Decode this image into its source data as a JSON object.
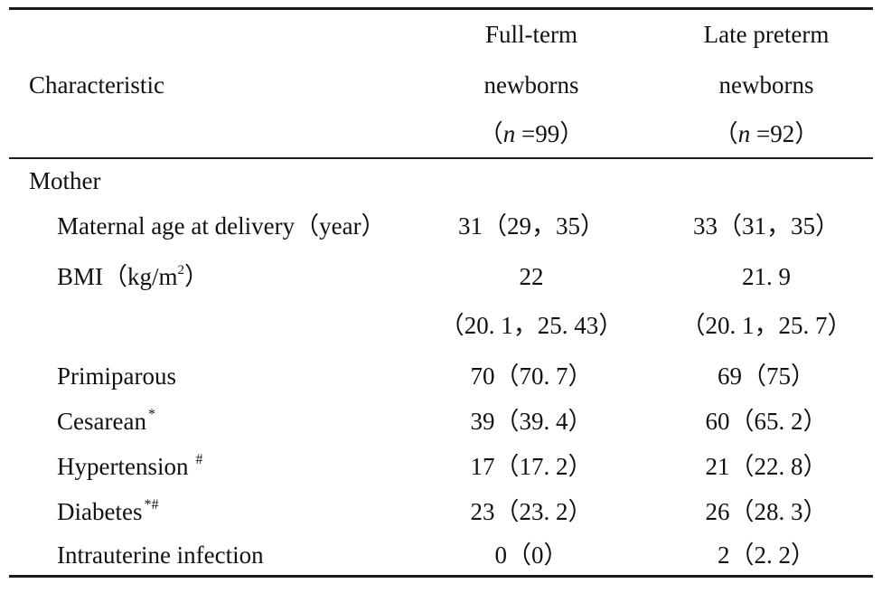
{
  "header": {
    "characteristic": "Characteristic",
    "col_full_term": [
      "Full-term",
      "newborns",
      "（n =99）"
    ],
    "col_late_preterm": [
      "Late preterm",
      "newborns",
      "（n =92）"
    ]
  },
  "section_label": "Mother",
  "rows": [
    {
      "label": "Maternal age at delivery（year）",
      "full_term": "31（29，35）",
      "late_preterm": "33（31，35）"
    },
    {
      "label": "BMI（kg/m",
      "label_sup": "2",
      "label_tail": "）",
      "full_term": "22",
      "late_preterm": "21. 9"
    },
    {
      "label": "",
      "full_term": "（20. 1，25. 43）",
      "late_preterm": "（20. 1，25. 7）"
    },
    {
      "label": "Primiparous",
      "full_term": "70（70. 7）",
      "late_preterm": "69（75）"
    },
    {
      "label": "Cesarean",
      "label_sup": "*",
      "full_term": "39（39. 4）",
      "late_preterm": "60（65. 2）"
    },
    {
      "label": "Hypertension",
      "label_sup": "#",
      "full_term": "17（17. 2）",
      "late_preterm": "21（22. 8）"
    },
    {
      "label": "Diabetes",
      "label_sup": "*#",
      "full_term": "23（23. 2）",
      "late_preterm": "26（28. 3）"
    },
    {
      "label": "Intrauterine infection",
      "full_term": "0（0）",
      "late_preterm": "2（2. 2）"
    }
  ]
}
